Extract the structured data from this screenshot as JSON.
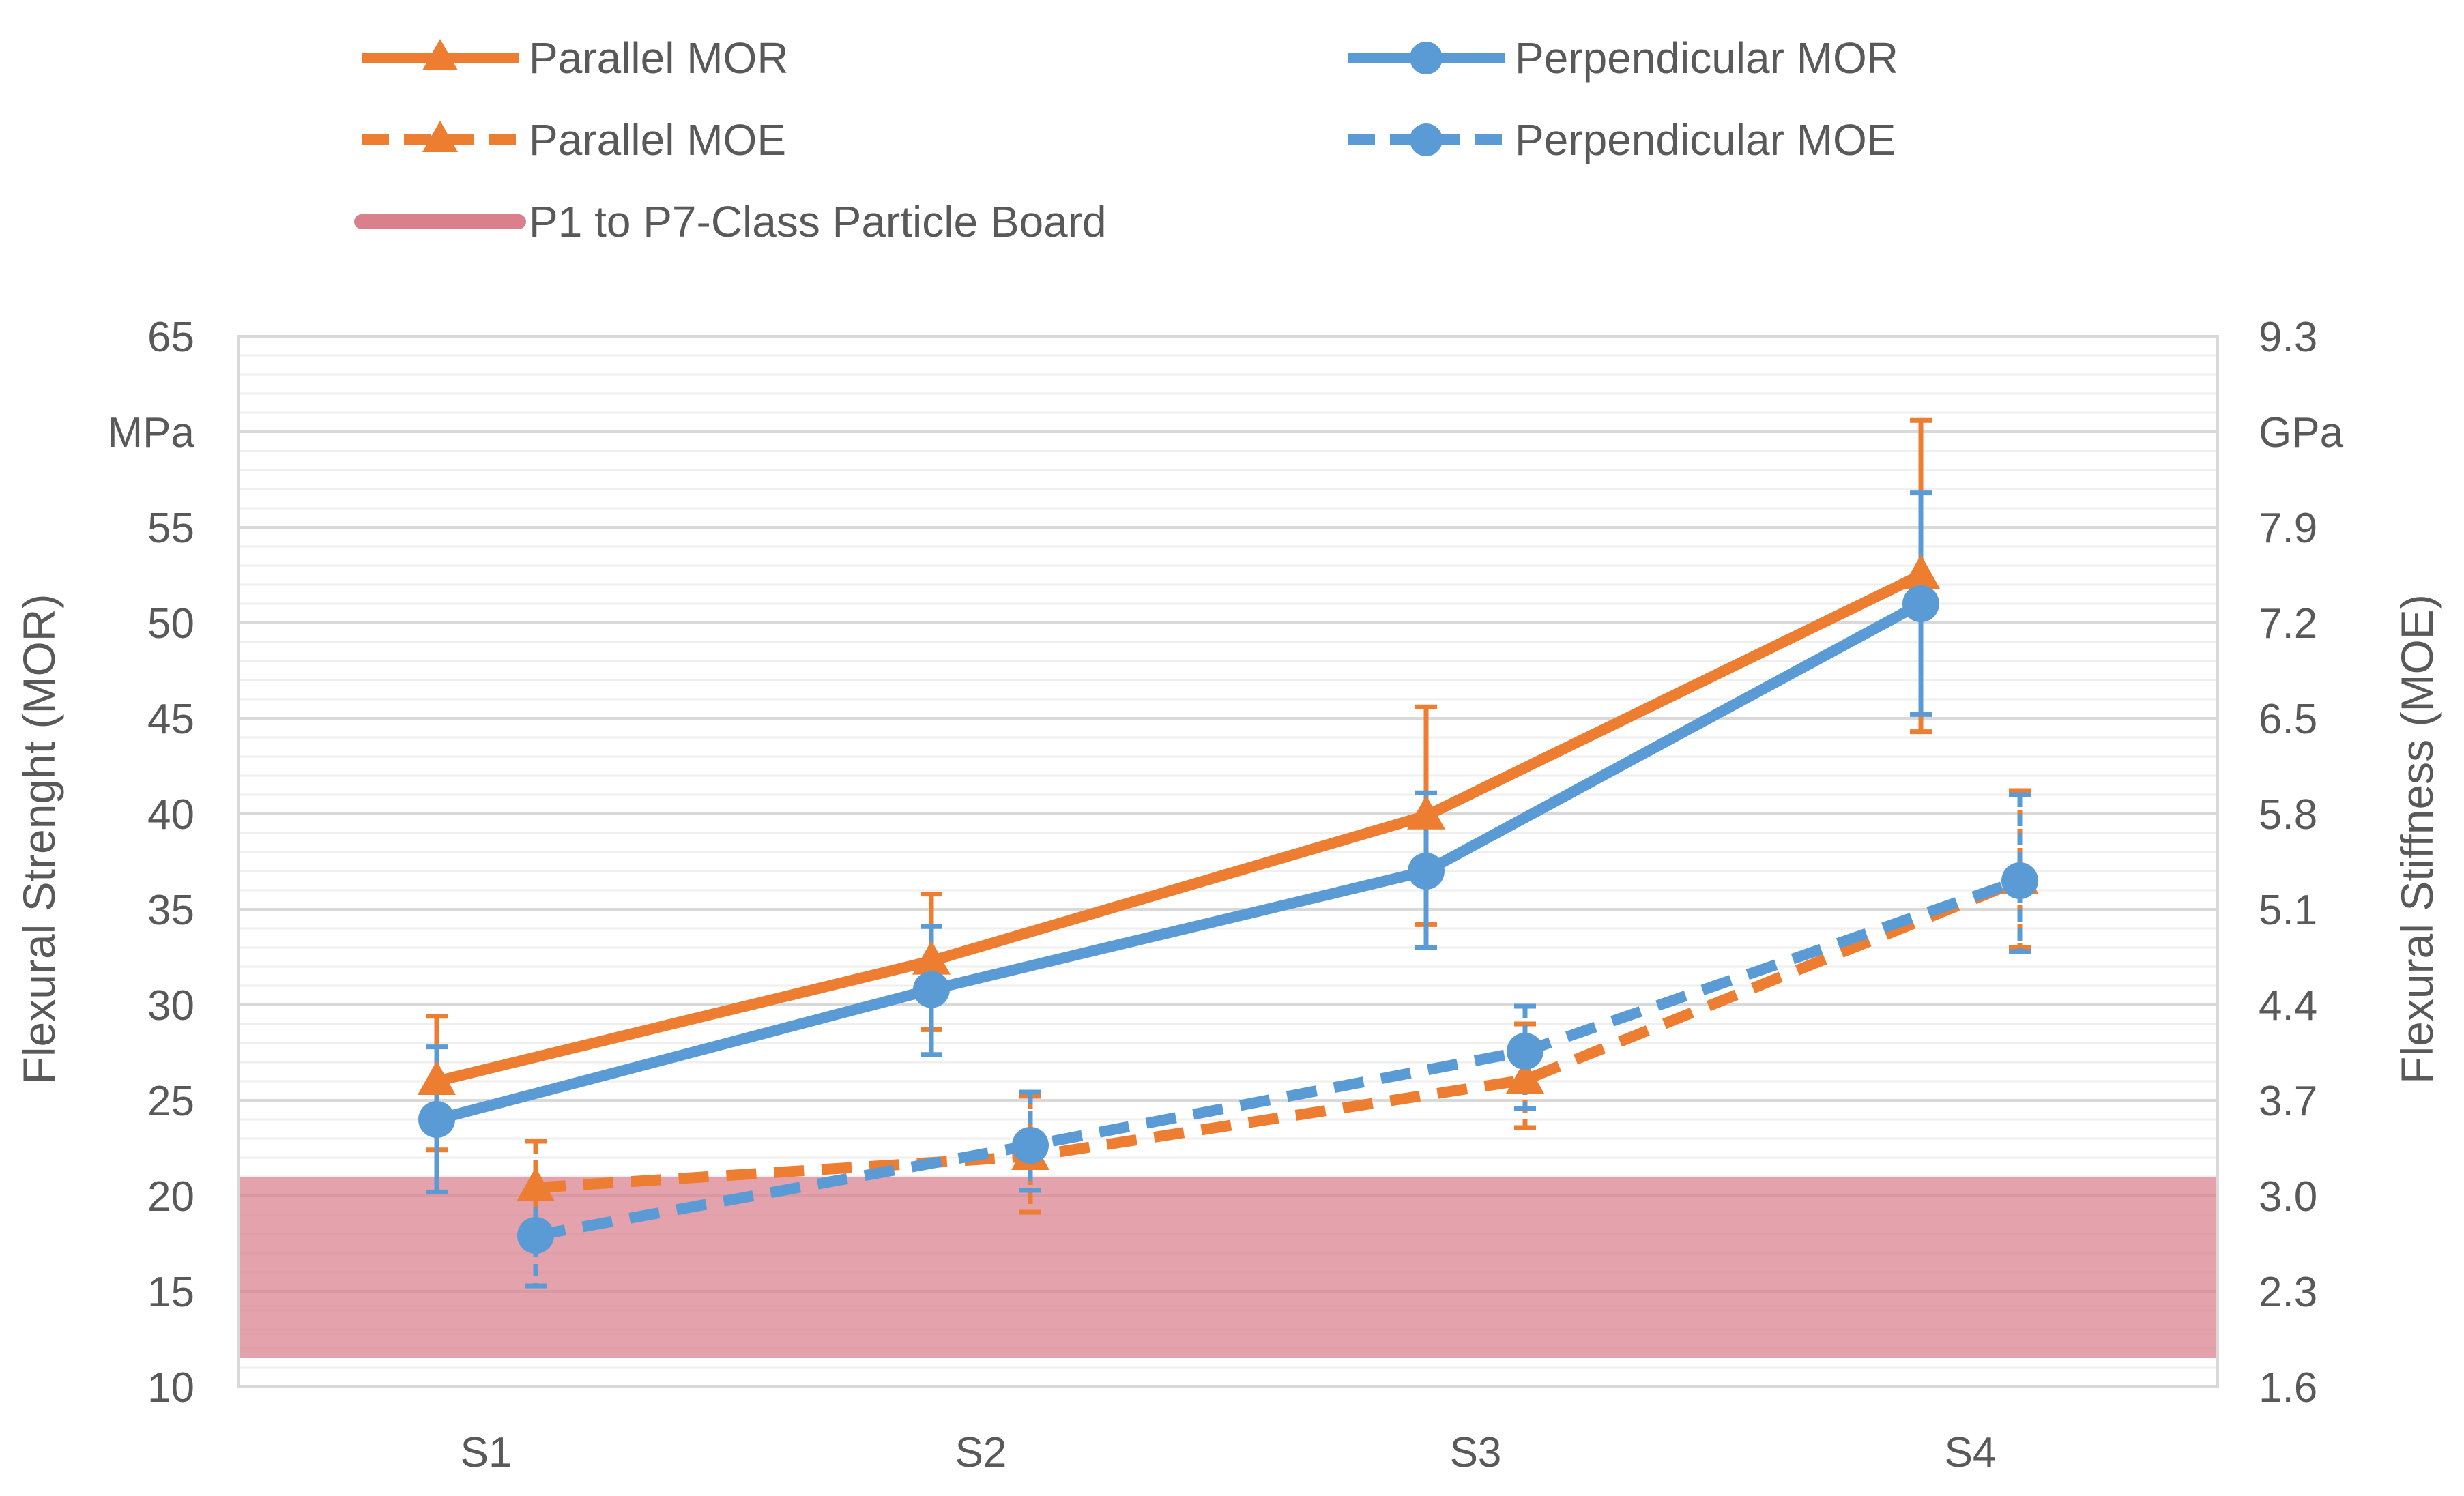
{
  "chart_data": {
    "type": "line",
    "categories": [
      "S1",
      "S2",
      "S3",
      "S4"
    ],
    "ylabel_left": "Flexural Strenght (MOR)",
    "ylabel_right": "Flexural Stiffness (MOE)",
    "left_unit": "MPa",
    "right_unit": "GPa",
    "ylim_left": [
      10,
      65
    ],
    "ylim_right": [
      1.6,
      9.3
    ],
    "left_ticks": [
      "65",
      "MPa",
      "55",
      "50",
      "45",
      "40",
      "35",
      "30",
      "25",
      "20",
      "15",
      "10"
    ],
    "right_ticks": [
      "9.3",
      "GPa",
      "7.9",
      "7.2",
      "6.5",
      "5.8",
      "5.1",
      "4.4",
      "3.7",
      "3.0",
      "2.3",
      "1.6"
    ],
    "grid": true,
    "legend_position": "top",
    "series": [
      {
        "name": "Parallel MOR",
        "axis": "left",
        "style": "solid",
        "marker": "triangle",
        "color": "#ED7D31",
        "values": [
          26,
          32.3,
          39.9,
          52.5
        ],
        "err_upper": [
          29.4,
          35.8,
          45.6,
          60.6
        ],
        "err_lower": [
          22.4,
          28.7,
          34.2,
          44.3
        ]
      },
      {
        "name": "Perpendicular MOR",
        "axis": "left",
        "style": "solid",
        "marker": "circle",
        "color": "#5B9BD5",
        "values": [
          24,
          30.8,
          37,
          51
        ],
        "err_upper": [
          27.8,
          34.1,
          41.1,
          56.8
        ],
        "err_lower": [
          20.2,
          27.4,
          33,
          45.2
        ]
      },
      {
        "name": "Parallel MOE",
        "axis": "right",
        "style": "dashed",
        "marker": "triangle",
        "color": "#ED7D31",
        "values": [
          3.06,
          3.29,
          3.85,
          5.31
        ],
        "err_upper": [
          3.4,
          3.73,
          4.26,
          5.97
        ],
        "err_lower": [
          2.73,
          2.88,
          3.5,
          4.82
        ]
      },
      {
        "name": "Perpendicular MOE",
        "axis": "right",
        "style": "dashed",
        "marker": "circle",
        "color": "#5B9BD5",
        "values": [
          2.71,
          3.37,
          4.06,
          5.31
        ],
        "err_upper": [
          3.06,
          3.76,
          4.39,
          5.94
        ],
        "err_lower": [
          2.34,
          3.04,
          3.64,
          4.79
        ]
      }
    ],
    "bands": [
      {
        "name": "P1 to P7-Class Particle Board",
        "axis": "left",
        "from": 11.5,
        "to": 21,
        "color": "#D9808C"
      }
    ]
  }
}
